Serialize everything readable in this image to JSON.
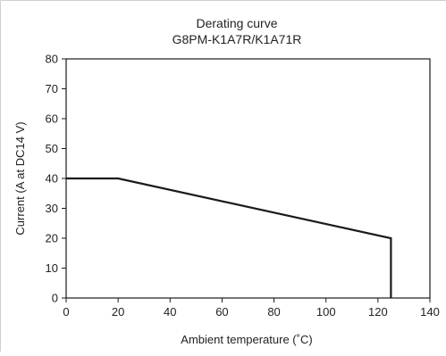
{
  "chart_data": {
    "type": "line",
    "title": "Derating curve",
    "subtitle": "G8PM-K1A7R/K1A71R",
    "xlabel": "Ambient temperature (˚C)",
    "ylabel": "Current (A at DC14 V)",
    "xlim": [
      0,
      140
    ],
    "ylim": [
      0,
      80
    ],
    "xticks": [
      "0",
      "20",
      "40",
      "60",
      "80",
      "100",
      "120",
      "140"
    ],
    "yticks": [
      "0",
      "10",
      "20",
      "30",
      "40",
      "50",
      "60",
      "70",
      "80"
    ],
    "grid": false,
    "series": [
      {
        "x": [
          0,
          20,
          125,
          125
        ],
        "y": [
          40,
          40,
          20,
          0
        ],
        "color": "#1a1a1a"
      }
    ]
  }
}
